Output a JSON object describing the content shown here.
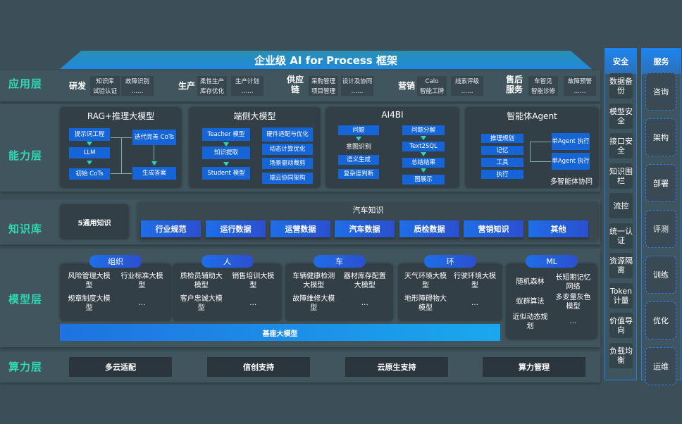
{
  "title": "企业级 AI for Process 框架",
  "layers": [
    "应用层",
    "能力层",
    "知识库",
    "模型层",
    "算力层"
  ],
  "application": [
    {
      "name": "研发",
      "items": [
        "知识库",
        "故障识别",
        "试验认证",
        "……"
      ]
    },
    {
      "name": "生产",
      "items": [
        "柔性生产",
        "生产计划",
        "库存优化",
        "……"
      ]
    },
    {
      "name": "供应链",
      "items": [
        "采购管理",
        "设计及协同",
        "项目管理",
        "……"
      ]
    },
    {
      "name": "营销",
      "items": [
        "Calo",
        "线索评级",
        "智能工牌",
        "……"
      ]
    },
    {
      "name": "售后服务",
      "items": [
        "车智见",
        "故障预警",
        "智能诊修",
        "……"
      ]
    }
  ],
  "capability": {
    "rag": {
      "title": "RAG+推理大模型",
      "steps": [
        "提示词工程",
        "LLM",
        "初始 CoTs",
        "迭代完善 CoTs",
        "生成答案"
      ]
    },
    "edge": {
      "title": "端侧大模型",
      "left": [
        "Teacher 模型",
        "知识提取",
        "Student 模型"
      ],
      "right": [
        "硬件适配与优化",
        "动态计算优化",
        "场景驱动裁剪",
        "端云协同架构"
      ]
    },
    "ai4bi": {
      "title": "AI4BI",
      "left": [
        "问题",
        "意图识别",
        "语义生成",
        "复杂度判断"
      ],
      "right": [
        "问题分解",
        "Text2SQL",
        "总结结果",
        "图展示"
      ]
    },
    "agent": {
      "title": "智能体Agent",
      "left": [
        "推理规划",
        "记忆",
        "工具",
        "执行"
      ],
      "right": [
        "单Agent 执行",
        "单Agent 执行"
      ],
      "footer": "多智能体协同"
    }
  },
  "knowledge": {
    "general": "5通用知识",
    "auto_title": "汽车知识",
    "auto_items": [
      "行业规范",
      "运行数据",
      "运营数据",
      "汽车数据",
      "质检数据",
      "营销知识",
      "其他"
    ]
  },
  "models": {
    "groups": [
      {
        "name": "组织",
        "items": [
          "风险管理大模型",
          "行业标准大模型",
          "规章制度大模型",
          "…"
        ]
      },
      {
        "name": "人",
        "items": [
          "质检员辅助大模型",
          "销售培训大模型",
          "客户忠诚大模型",
          "…"
        ]
      },
      {
        "name": "车",
        "items": [
          "车辆健康检测大模型",
          "器材库存配置大模型",
          "故障维修大模型",
          "…"
        ]
      },
      {
        "name": "环",
        "items": [
          "天气环境大模型",
          "行驶环境大模型",
          "地形障碍物大模型",
          "…"
        ]
      },
      {
        "name": "ML",
        "items": [
          "随机森林",
          "长短期记忆网络",
          "蚁群算法",
          "多变量灰色模型",
          "近似动态规划",
          "…"
        ]
      }
    ],
    "base": "基座大模型"
  },
  "compute": [
    "多云适配",
    "信创支持",
    "云原生支持",
    "算力管理"
  ],
  "security": {
    "title": "安全",
    "items": [
      "数据备份",
      "模型安全",
      "接口安全",
      "知识围栏",
      "流控",
      "统一认证",
      "资源隔离",
      "Token 计量",
      "价值导向",
      "负载均衡"
    ]
  },
  "services": {
    "title": "服务",
    "items": [
      "咨询",
      "架构",
      "部署",
      "评测",
      "训练",
      "优化",
      "运维"
    ]
  },
  "colors": {
    "layer_label": "#2fd9b5",
    "accent_blue": "#1565d8",
    "background": "#3c4f58"
  }
}
